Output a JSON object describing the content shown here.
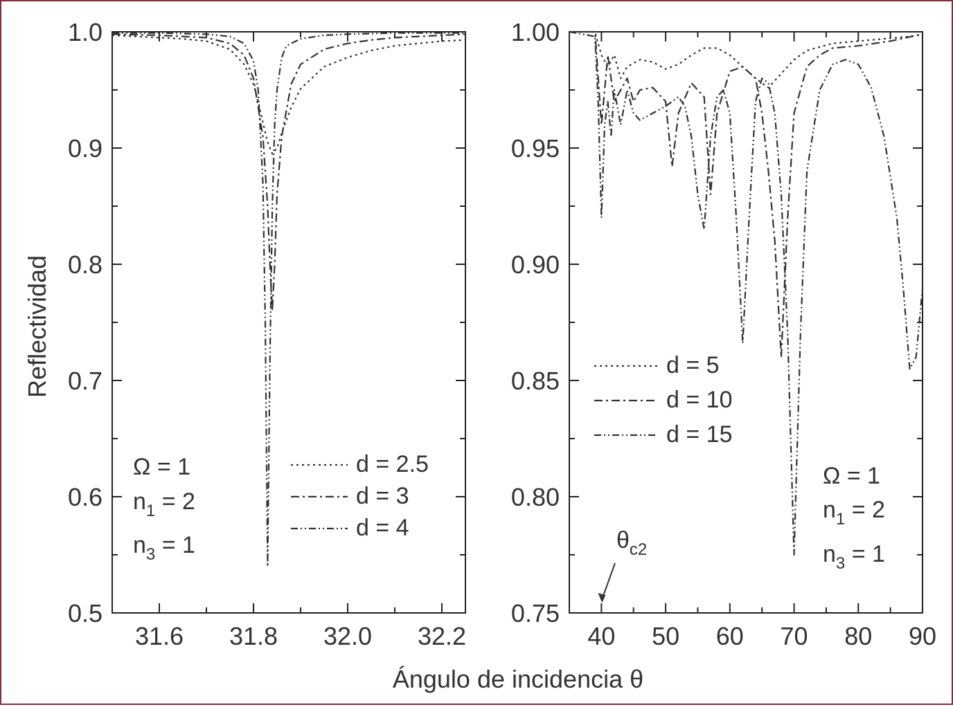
{
  "figure": {
    "ylabel": "Reflectividad",
    "xlabel": "Ángulo de incidencia θ"
  },
  "chart_data": [
    {
      "type": "line",
      "xlim": [
        31.5,
        32.25
      ],
      "ylim": [
        0.5,
        1.0
      ],
      "x_ticks": [
        "31.6",
        "31.8",
        "32.0",
        "32.2"
      ],
      "y_ticks": [
        "0.5",
        "0.6",
        "0.7",
        "0.8",
        "0.9",
        "1.0"
      ],
      "annotations": {
        "omega": "Ω = 1",
        "n1": {
          "base": "n",
          "sub": "1",
          "rest": " = 2"
        },
        "n3": {
          "base": "n",
          "sub": "3",
          "rest": " = 1"
        }
      },
      "series": [
        {
          "name": "d = 2.5",
          "dash": "3 5",
          "x": [
            31.5,
            31.55,
            31.6,
            31.65,
            31.7,
            31.75,
            31.78,
            31.8,
            31.81,
            31.82,
            31.83,
            31.84,
            31.85,
            31.86,
            31.88,
            31.9,
            31.95,
            32.0,
            32.05,
            32.1,
            32.15,
            32.2,
            32.25
          ],
          "y": [
            0.997,
            0.996,
            0.995,
            0.994,
            0.992,
            0.985,
            0.972,
            0.955,
            0.94,
            0.922,
            0.905,
            0.895,
            0.9,
            0.913,
            0.935,
            0.951,
            0.97,
            0.978,
            0.984,
            0.988,
            0.99,
            0.992,
            0.993
          ]
        },
        {
          "name": "d = 3",
          "dash": "12 5 3 5",
          "x": [
            31.5,
            31.6,
            31.7,
            31.75,
            31.78,
            31.8,
            31.82,
            31.83,
            31.835,
            31.84,
            31.845,
            31.85,
            31.86,
            31.88,
            31.9,
            31.95,
            32.0,
            32.05,
            32.1,
            32.2,
            32.25
          ],
          "y": [
            0.998,
            0.997,
            0.995,
            0.99,
            0.98,
            0.96,
            0.91,
            0.85,
            0.8,
            0.76,
            0.8,
            0.86,
            0.91,
            0.955,
            0.972,
            0.985,
            0.99,
            0.993,
            0.995,
            0.997,
            0.998
          ]
        },
        {
          "name": "d = 4",
          "dash": "10 4 2 4 2 4",
          "x": [
            31.5,
            31.6,
            31.7,
            31.75,
            31.78,
            31.8,
            31.81,
            31.82,
            31.825,
            31.83,
            31.835,
            31.84,
            31.845,
            31.85,
            31.86,
            31.87,
            31.9,
            31.95,
            32.0,
            32.1,
            32.25
          ],
          "y": [
            0.999,
            0.999,
            0.998,
            0.996,
            0.99,
            0.975,
            0.95,
            0.87,
            0.75,
            0.54,
            0.72,
            0.85,
            0.92,
            0.95,
            0.978,
            0.988,
            0.994,
            0.997,
            0.998,
            0.999,
            0.999
          ]
        }
      ]
    },
    {
      "type": "line",
      "xlim": [
        35,
        90
      ],
      "ylim": [
        0.75,
        1.0
      ],
      "x_ticks": [
        "40",
        "50",
        "60",
        "70",
        "80",
        "90"
      ],
      "y_ticks": [
        "0.75",
        "0.80",
        "0.85",
        "0.90",
        "0.95",
        "1.00"
      ],
      "annotations": {
        "omega": "Ω = 1",
        "n1": {
          "base": "n",
          "sub": "1",
          "rest": " = 2"
        },
        "n3": {
          "base": "n",
          "sub": "3",
          "rest": " = 1"
        },
        "theta_c2": {
          "base": "θ",
          "sub": "c2",
          "x": 40,
          "y": 0.755
        }
      },
      "series": [
        {
          "name": "d = 5",
          "dash": "3 5",
          "x": [
            35,
            39,
            40,
            41,
            42,
            43,
            44,
            46,
            48,
            50,
            52,
            54,
            56,
            58,
            60,
            62,
            64,
            66,
            68,
            70,
            72,
            76,
            80,
            84,
            88,
            90
          ],
          "y": [
            1.0,
            1.0,
            0.99,
            0.985,
            0.99,
            0.98,
            0.985,
            0.988,
            0.987,
            0.984,
            0.986,
            0.99,
            0.993,
            0.993,
            0.99,
            0.985,
            0.98,
            0.976,
            0.982,
            0.988,
            0.992,
            0.995,
            0.996,
            0.997,
            0.998,
            0.999
          ]
        },
        {
          "name": "d = 10",
          "dash": "12 5 3 5",
          "x": [
            35,
            39,
            40,
            41,
            42,
            43,
            44,
            45,
            46,
            48,
            50,
            51,
            52,
            54,
            56,
            57,
            58,
            60,
            62,
            64,
            65,
            66,
            67,
            68,
            69,
            70,
            72,
            74,
            76,
            80,
            85,
            90
          ],
          "y": [
            1.0,
            1.0,
            0.96,
            0.99,
            0.97,
            0.975,
            0.98,
            0.97,
            0.975,
            0.976,
            0.97,
            0.942,
            0.965,
            0.978,
            0.972,
            0.93,
            0.965,
            0.983,
            0.985,
            0.98,
            0.965,
            0.94,
            0.91,
            0.86,
            0.92,
            0.965,
            0.985,
            0.99,
            0.993,
            0.994,
            0.996,
            0.999
          ]
        },
        {
          "name": "d = 15",
          "dash": "10 4 2 4 2 4",
          "x": [
            35,
            39,
            39.5,
            40,
            40.5,
            41,
            41.5,
            42,
            43,
            44,
            45,
            46,
            48,
            50,
            52,
            53,
            54,
            55,
            56,
            57,
            58,
            59,
            60,
            61,
            62,
            63,
            64,
            65,
            66,
            67,
            68,
            69,
            70,
            71,
            72,
            74,
            76,
            78,
            80,
            82,
            84,
            86,
            87,
            88,
            89,
            90
          ],
          "y": [
            1.0,
            0.998,
            0.97,
            0.92,
            0.96,
            0.97,
            0.955,
            0.975,
            0.96,
            0.975,
            0.965,
            0.962,
            0.965,
            0.968,
            0.972,
            0.968,
            0.955,
            0.93,
            0.915,
            0.955,
            0.972,
            0.975,
            0.965,
            0.92,
            0.866,
            0.92,
            0.97,
            0.98,
            0.978,
            0.965,
            0.93,
            0.87,
            0.775,
            0.87,
            0.94,
            0.975,
            0.986,
            0.988,
            0.986,
            0.976,
            0.955,
            0.92,
            0.89,
            0.855,
            0.86,
            0.89
          ]
        }
      ]
    }
  ]
}
